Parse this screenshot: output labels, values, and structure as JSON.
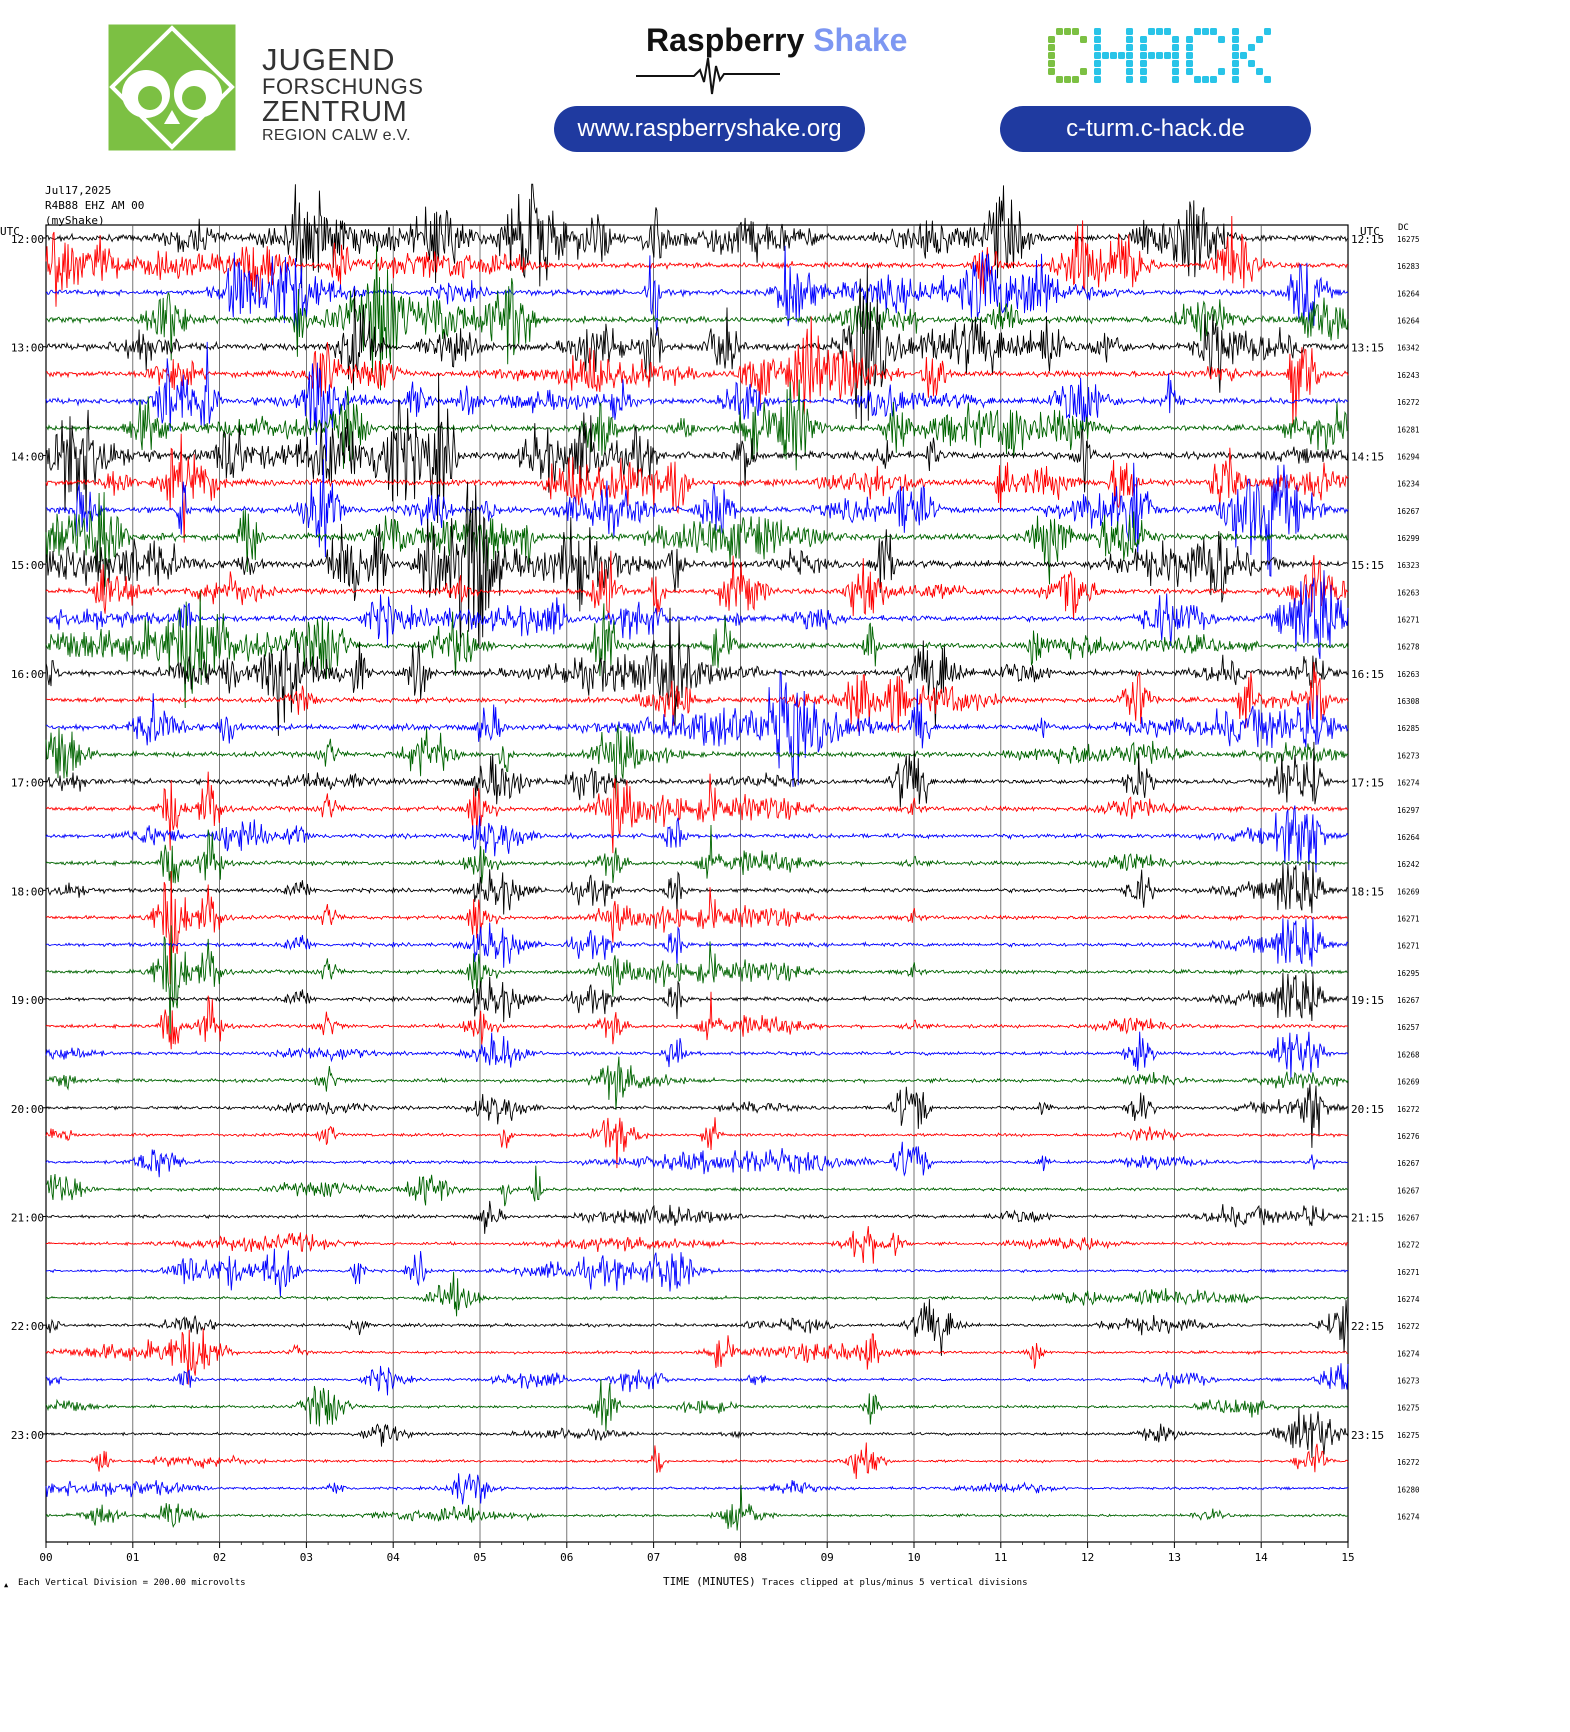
{
  "branding": {
    "jfz": {
      "line1": "JUGEND",
      "line2": "FORSCHUNGS",
      "line3": "ZENTRUM",
      "line4": "REGION CALW e.V.",
      "color": "#7cc043"
    },
    "rs": {
      "word1": "Raspberry",
      "word2": "Shake",
      "url": "www.raspberryshake.org"
    },
    "chack": {
      "wordmark": "CHACK",
      "url": "c-turm.c-hack.de"
    }
  },
  "header": {
    "date": "Jul17,2025",
    "station": "R4B88 EHZ AM 00",
    "source": "(myShake)",
    "utc_left": "UTC",
    "utc_right": "UTC",
    "dc_label": "DC"
  },
  "chart_data": {
    "type": "helicorder",
    "xlabel": "TIME (MINUTES)",
    "x_ticks": [
      "00",
      "01",
      "02",
      "03",
      "04",
      "05",
      "06",
      "07",
      "08",
      "09",
      "10",
      "11",
      "12",
      "13",
      "14",
      "15"
    ],
    "xlim": [
      0,
      15
    ],
    "colors": [
      "#000000",
      "#ff0000",
      "#0000ff",
      "#006400"
    ],
    "left_hour_labels": [
      "12:00",
      "13:00",
      "14:00",
      "15:00",
      "16:00",
      "17:00",
      "18:00",
      "19:00",
      "20:00",
      "21:00",
      "22:00",
      "23:00"
    ],
    "right_hour_labels": [
      "12:15",
      "13:15",
      "14:15",
      "15:15",
      "16:15",
      "17:15",
      "18:15",
      "19:15",
      "20:15",
      "21:15",
      "22:15",
      "23:15"
    ],
    "dc_values": [
      "16275",
      "16283",
      "16264",
      "16264",
      "16342",
      "16243",
      "16272",
      "16281",
      "16294",
      "16234",
      "16267",
      "16299",
      "16323",
      "16263",
      "16271",
      "16278",
      "16263",
      "16308",
      "16285",
      "16273",
      "16274",
      "16297",
      "16264",
      "16242",
      "16269",
      "16271",
      "16271",
      "16295",
      "16267",
      "16257",
      "16268",
      "16269",
      "16272",
      "16276",
      "16267",
      "16267",
      "16267",
      "16272",
      "16271",
      "16274",
      "16272",
      "16274",
      "16273",
      "16275",
      "16275",
      "16272",
      "16280",
      "16274"
    ],
    "activity": [
      2.0,
      1.6,
      1.6,
      1.8,
      2.1,
      1.7,
      1.7,
      1.7,
      2.3,
      1.9,
      1.9,
      1.9,
      2.0,
      1.5,
      1.6,
      1.5,
      1.6,
      1.4,
      1.6,
      1.4,
      1.3,
      1.2,
      1.1,
      1.0,
      1.0,
      0.9,
      0.9,
      0.9,
      0.9,
      0.8,
      0.8,
      0.8,
      0.7,
      0.6,
      0.6,
      0.6,
      0.6,
      0.5,
      0.5,
      0.5,
      0.6,
      0.5,
      0.5,
      0.5,
      0.5,
      0.4,
      0.4,
      0.4
    ],
    "footer_left": "Each Vertical Division =  200.00 microvolts",
    "footer_right": "Traces clipped at plus/minus 5 vertical divisions"
  }
}
